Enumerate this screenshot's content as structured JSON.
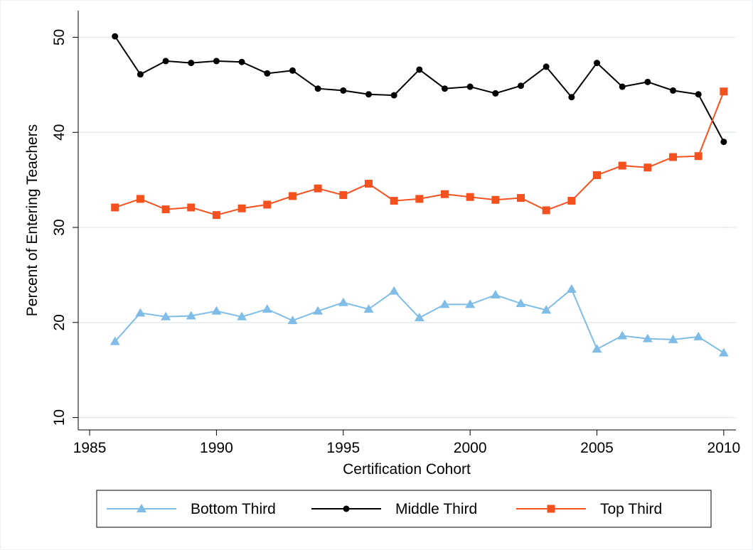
{
  "chart_data": {
    "type": "line",
    "x_label": "Certification Cohort",
    "y_label": "Percent of Entering Teachers",
    "x": [
      1986,
      1987,
      1988,
      1989,
      1990,
      1991,
      1992,
      1993,
      1994,
      1995,
      1996,
      1997,
      1998,
      1999,
      2000,
      2001,
      2002,
      2003,
      2004,
      2005,
      2006,
      2007,
      2008,
      2009,
      2010
    ],
    "series": [
      {
        "name": "Bottom Third",
        "color": "#7fbde6",
        "marker": "triangle",
        "values": [
          18.0,
          21.0,
          20.6,
          20.7,
          21.2,
          20.6,
          21.4,
          20.2,
          21.2,
          22.1,
          21.4,
          23.3,
          20.5,
          21.9,
          21.9,
          22.9,
          22.0,
          21.3,
          23.5,
          17.2,
          18.6,
          18.3,
          18.2,
          18.5,
          16.8
        ]
      },
      {
        "name": "Middle Third",
        "color": "#000000",
        "marker": "circle",
        "values": [
          50.1,
          46.1,
          47.5,
          47.3,
          47.5,
          47.4,
          46.2,
          46.5,
          44.6,
          44.4,
          44.0,
          43.9,
          46.6,
          44.6,
          44.8,
          44.1,
          44.9,
          46.9,
          43.7,
          47.3,
          44.8,
          45.3,
          44.4,
          44.0,
          39.0
        ]
      },
      {
        "name": "Top Third",
        "color": "#f4511e",
        "marker": "square",
        "values": [
          32.1,
          33.0,
          31.9,
          32.1,
          31.3,
          32.0,
          32.4,
          33.3,
          34.1,
          33.4,
          34.6,
          32.8,
          33.0,
          33.5,
          33.2,
          32.9,
          33.1,
          31.8,
          32.8,
          35.5,
          36.5,
          36.3,
          37.4,
          37.5,
          44.3
        ]
      }
    ],
    "xlim": [
      1984.55,
      2010.48
    ],
    "xticks": [
      1985,
      1990,
      1995,
      2000,
      2005,
      2010
    ],
    "ylim": [
      8.7,
      52.8
    ],
    "yticks": [
      10,
      20,
      30,
      40,
      50
    ],
    "grid": true,
    "legend": "bottom"
  }
}
